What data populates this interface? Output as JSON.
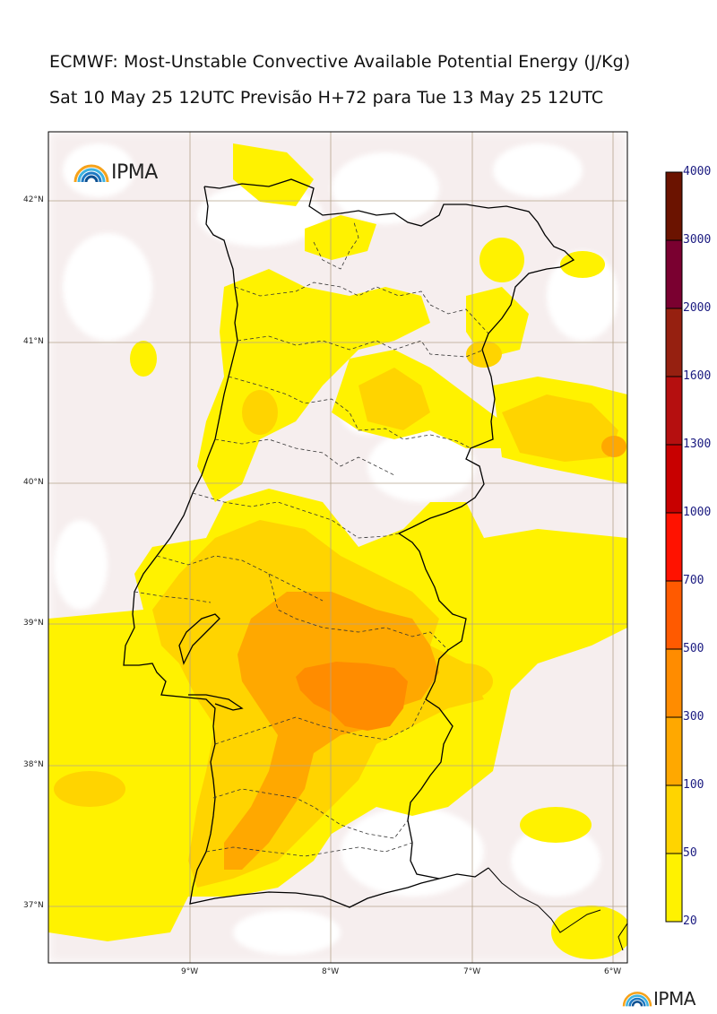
{
  "header": {
    "title": "ECMWF: Most-Unstable Convective Available Potential Energy (J/Kg)",
    "subtitle": "Sat 10 May 25 12UTC Previsão H+72 para Tue 13 May 25 12UTC"
  },
  "map": {
    "lat_labels": [
      "42°N",
      "41°N",
      "40°N",
      "39°N",
      "38°N",
      "37°N"
    ],
    "lon_labels": [
      "9°W",
      "8°W",
      "7°W",
      "6°W"
    ],
    "logo_text": "IPMA"
  },
  "colorbar": {
    "labels": [
      "4000",
      "3000",
      "2000",
      "1600",
      "1300",
      "1000",
      "700",
      "500",
      "300",
      "100",
      "50",
      "20"
    ],
    "colors": [
      "#6b1300",
      "#7a0030",
      "#962010",
      "#b50f0f",
      "#c80000",
      "#ff1200",
      "#ff5a00",
      "#ff8c00",
      "#ffa800",
      "#ffd400",
      "#fff200",
      "#f6eeee"
    ]
  },
  "footer": {
    "logo_text": "IPMA"
  }
}
